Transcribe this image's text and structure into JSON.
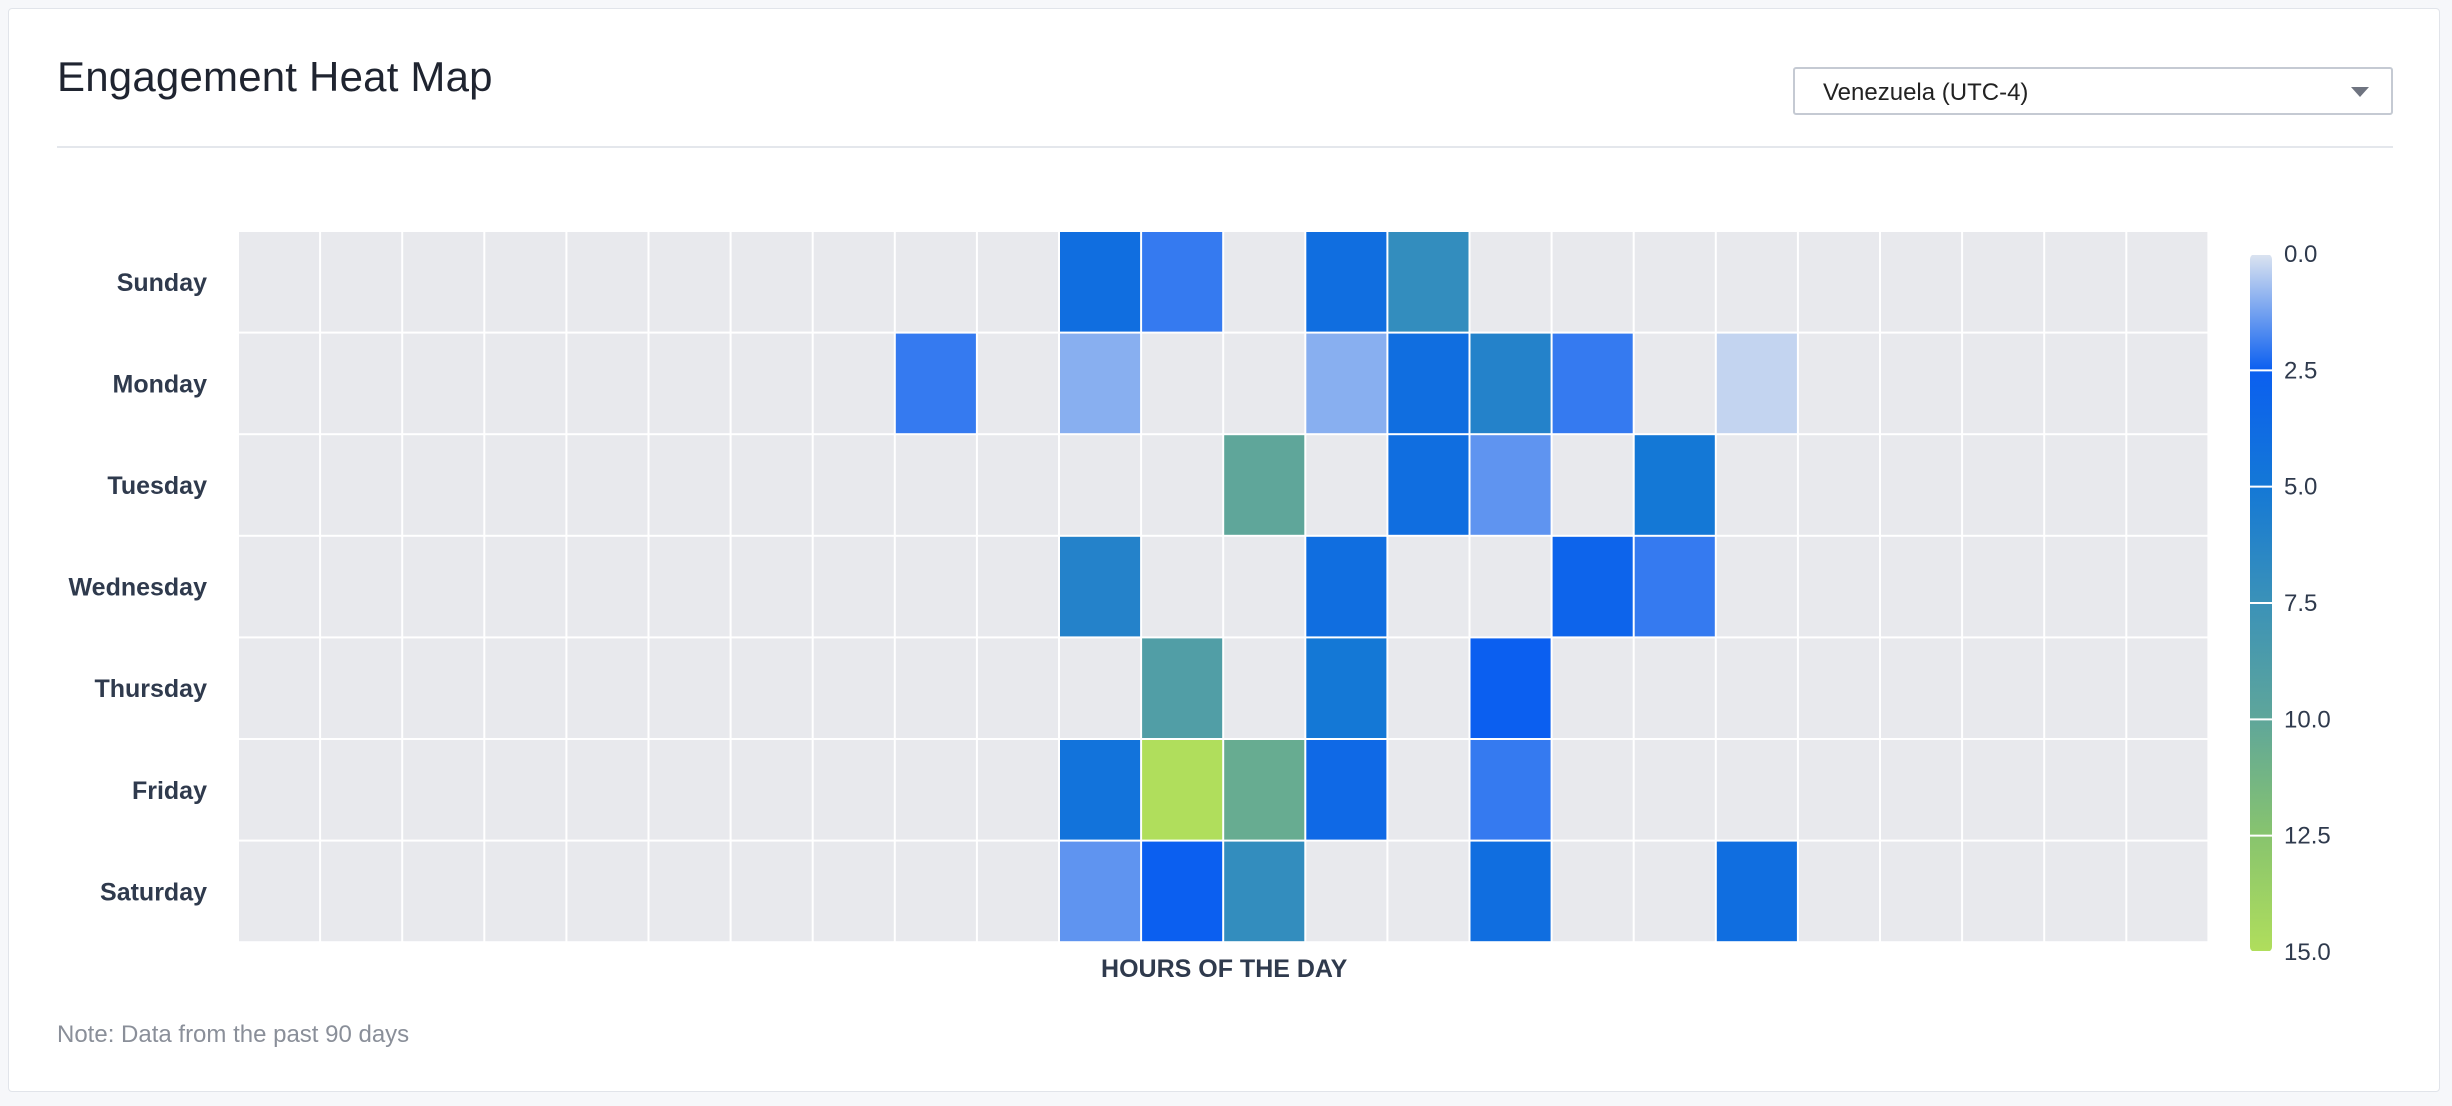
{
  "header": {
    "title": "Engagement Heat Map",
    "timezone_select": {
      "value": "Venezuela (UTC-4)"
    }
  },
  "note": "Note: Data from the past 90 days",
  "chart_data": {
    "type": "heatmap",
    "title": "",
    "xlabel": "HOURS OF THE DAY",
    "ylabel": "",
    "y_categories": [
      "Sunday",
      "Monday",
      "Tuesday",
      "Wednesday",
      "Thursday",
      "Friday",
      "Saturday"
    ],
    "x_count": 24,
    "color_scale": {
      "min": 0.0,
      "max": 15.0,
      "ticks": [
        "0.0",
        "2.5",
        "5.0",
        "7.5",
        "10.0",
        "12.5",
        "15.0"
      ],
      "stops": [
        {
          "value": 0.0,
          "color": "#dce4f0"
        },
        {
          "value": 2.5,
          "color": "#0b5ff0"
        },
        {
          "value": 5.0,
          "color": "#1478d6"
        },
        {
          "value": 7.5,
          "color": "#3b92b8"
        },
        {
          "value": 10.0,
          "color": "#5fa69a"
        },
        {
          "value": 12.5,
          "color": "#88c46e"
        },
        {
          "value": 15.0,
          "color": "#b0de5c"
        }
      ],
      "empty_color": "#e8e9ed"
    },
    "cells": [
      {
        "day": 0,
        "hour": 10,
        "value": 4
      },
      {
        "day": 0,
        "hour": 11,
        "value": 2
      },
      {
        "day": 0,
        "hour": 13,
        "value": 4
      },
      {
        "day": 0,
        "hour": 14,
        "value": 7
      },
      {
        "day": 1,
        "hour": 8,
        "value": 2
      },
      {
        "day": 1,
        "hour": 10,
        "value": 1
      },
      {
        "day": 1,
        "hour": 13,
        "value": 1
      },
      {
        "day": 1,
        "hour": 14,
        "value": 4
      },
      {
        "day": 1,
        "hour": 15,
        "value": 6
      },
      {
        "day": 1,
        "hour": 16,
        "value": 2
      },
      {
        "day": 1,
        "hour": 18,
        "value": 0.3
      },
      {
        "day": 2,
        "hour": 12,
        "value": 10
      },
      {
        "day": 2,
        "hour": 14,
        "value": 4
      },
      {
        "day": 2,
        "hour": 15,
        "value": 1.5
      },
      {
        "day": 2,
        "hour": 17,
        "value": 5
      },
      {
        "day": 3,
        "hour": 10,
        "value": 6
      },
      {
        "day": 3,
        "hour": 13,
        "value": 4
      },
      {
        "day": 3,
        "hour": 16,
        "value": 3
      },
      {
        "day": 3,
        "hour": 17,
        "value": 2
      },
      {
        "day": 4,
        "hour": 11,
        "value": 9
      },
      {
        "day": 4,
        "hour": 13,
        "value": 5
      },
      {
        "day": 4,
        "hour": 15,
        "value": 2.5
      },
      {
        "day": 5,
        "hour": 10,
        "value": 4.5
      },
      {
        "day": 5,
        "hour": 11,
        "value": 15
      },
      {
        "day": 5,
        "hour": 12,
        "value": 10.5
      },
      {
        "day": 5,
        "hour": 13,
        "value": 3.5
      },
      {
        "day": 5,
        "hour": 15,
        "value": 2
      },
      {
        "day": 6,
        "hour": 10,
        "value": 1.5
      },
      {
        "day": 6,
        "hour": 11,
        "value": 2.5
      },
      {
        "day": 6,
        "hour": 12,
        "value": 7
      },
      {
        "day": 6,
        "hour": 15,
        "value": 4
      },
      {
        "day": 6,
        "hour": 18,
        "value": 4
      }
    ]
  }
}
